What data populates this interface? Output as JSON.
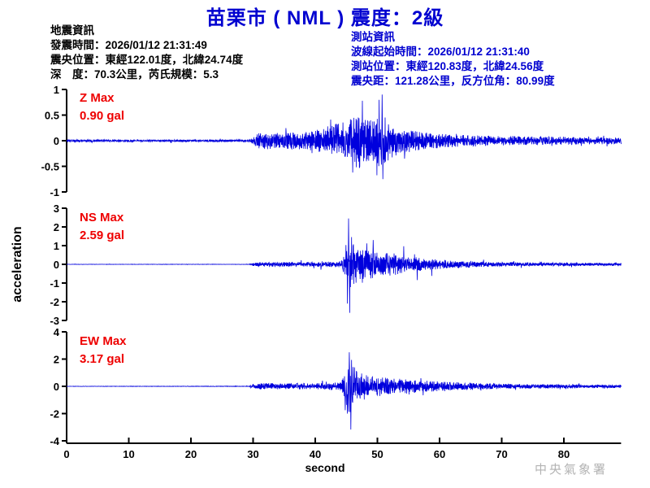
{
  "title": "苗栗市 ( NML )  震度：2級",
  "watermark": "中央氣象署",
  "colors": {
    "title_blue": "#0000d0",
    "trace_blue": "#0000dd",
    "label_red": "#ee0000",
    "axis_black": "#000000",
    "watermark_grey": "#b3b3b3"
  },
  "info": {
    "earthquake": {
      "lines": [
        "地震資訊",
        "發震時間：2026/01/12 21:31:49",
        "震央位置：東經122.01度，北緯24.74度",
        "深　度：70.3公里，芮氏規模：5.3"
      ]
    },
    "station": {
      "lines": [
        "測站資訊",
        "波線起始時間：2026/01/12 21:31:40",
        "測站位置：東經120.83度，北緯24.56度",
        "震央距：121.28公里，反方位角：80.99度"
      ]
    }
  },
  "chart_data": {
    "type": "line",
    "subtype": "three-component-seismogram-acceleration",
    "x_axis": {
      "label": "second",
      "range": [
        0,
        89.2
      ],
      "ticks": [
        0,
        10,
        20,
        30,
        40,
        50,
        60,
        70,
        80
      ]
    },
    "y_axis_label": "acceleration",
    "grid": false,
    "legend": false,
    "p_wave_arrival_s": 29.5,
    "s_wave_arrival_s": 45.5,
    "panels": [
      {
        "id": "Z",
        "label": "Z Max",
        "max_label": "0.90 gal",
        "max_gal": 0.9,
        "ylim": [
          -1,
          1
        ],
        "yticks": [
          1,
          0.5,
          0,
          -0.5,
          -1
        ],
        "envelope": [
          [
            0,
            0.02
          ],
          [
            29,
            0.022
          ],
          [
            29.8,
            0.05
          ],
          [
            30.5,
            0.14
          ],
          [
            32,
            0.17
          ],
          [
            34,
            0.15
          ],
          [
            36,
            0.16
          ],
          [
            38,
            0.17
          ],
          [
            40,
            0.2
          ],
          [
            42,
            0.28
          ],
          [
            44,
            0.36
          ],
          [
            45.5,
            0.45
          ],
          [
            47,
            0.55
          ],
          [
            48,
            0.45
          ],
          [
            49,
            0.4
          ],
          [
            50,
            0.45
          ],
          [
            50.7,
            0.6
          ],
          [
            51.5,
            0.42
          ],
          [
            53,
            0.3
          ],
          [
            55,
            0.24
          ],
          [
            57,
            0.18
          ],
          [
            60,
            0.14
          ],
          [
            64,
            0.11
          ],
          [
            68,
            0.1
          ],
          [
            72,
            0.09
          ],
          [
            78,
            0.08
          ],
          [
            84,
            0.07
          ],
          [
            89.2,
            0.065
          ]
        ],
        "peaks": [
          [
            50.75,
            0.9
          ],
          [
            50.9,
            -0.75
          ],
          [
            47.6,
            0.78
          ],
          [
            46.0,
            -0.62
          ]
        ]
      },
      {
        "id": "NS",
        "label": "NS Max",
        "max_label": "2.59 gal",
        "max_gal": 2.59,
        "ylim": [
          -3,
          3
        ],
        "yticks": [
          3,
          2,
          1,
          0,
          -1,
          -2,
          -3
        ],
        "envelope": [
          [
            0,
            0.008
          ],
          [
            29.3,
            0.01
          ],
          [
            30,
            0.09
          ],
          [
            32,
            0.13
          ],
          [
            35,
            0.12
          ],
          [
            38,
            0.13
          ],
          [
            41,
            0.13
          ],
          [
            44,
            0.16
          ],
          [
            44.7,
            0.5
          ],
          [
            45.1,
            1.6
          ],
          [
            45.5,
            2.2
          ],
          [
            46,
            1.2
          ],
          [
            46.8,
            0.9
          ],
          [
            48,
            0.75
          ],
          [
            49.5,
            0.8
          ],
          [
            51,
            0.6
          ],
          [
            52.5,
            0.65
          ],
          [
            54,
            0.45
          ],
          [
            56,
            0.4
          ],
          [
            58,
            0.3
          ],
          [
            60,
            0.26
          ],
          [
            63,
            0.2
          ],
          [
            66,
            0.15
          ],
          [
            70,
            0.12
          ],
          [
            75,
            0.1
          ],
          [
            80,
            0.09
          ],
          [
            85,
            0.08
          ],
          [
            89.2,
            0.07
          ]
        ],
        "peaks": [
          [
            45.55,
            -2.59
          ],
          [
            45.35,
            2.45
          ],
          [
            45.15,
            -2.1
          ],
          [
            49.3,
            1.3
          ]
        ]
      },
      {
        "id": "EW",
        "label": "EW Max",
        "max_label": "3.17 gal",
        "max_gal": 3.17,
        "ylim": [
          -4,
          4
        ],
        "yticks": [
          4,
          2,
          0,
          -2,
          -4
        ],
        "envelope": [
          [
            0,
            0.012
          ],
          [
            29.3,
            0.02
          ],
          [
            30,
            0.18
          ],
          [
            32,
            0.24
          ],
          [
            35,
            0.22
          ],
          [
            38,
            0.24
          ],
          [
            41,
            0.24
          ],
          [
            44,
            0.3
          ],
          [
            44.7,
            0.8
          ],
          [
            45.2,
            2.2
          ],
          [
            45.7,
            2.4
          ],
          [
            46.3,
            1.3
          ],
          [
            47,
            1.1
          ],
          [
            48,
            0.95
          ],
          [
            49.5,
            0.75
          ],
          [
            51,
            0.65
          ],
          [
            52.5,
            0.55
          ],
          [
            54,
            0.6
          ],
          [
            56,
            0.48
          ],
          [
            58,
            0.42
          ],
          [
            60,
            0.38
          ],
          [
            63,
            0.3
          ],
          [
            66,
            0.25
          ],
          [
            70,
            0.2
          ],
          [
            75,
            0.17
          ],
          [
            80,
            0.15
          ],
          [
            85,
            0.13
          ],
          [
            89.2,
            0.12
          ]
        ],
        "peaks": [
          [
            45.7,
            -3.17
          ],
          [
            45.45,
            2.5
          ],
          [
            45.2,
            -2.0
          ],
          [
            46.3,
            1.4
          ]
        ]
      }
    ]
  }
}
